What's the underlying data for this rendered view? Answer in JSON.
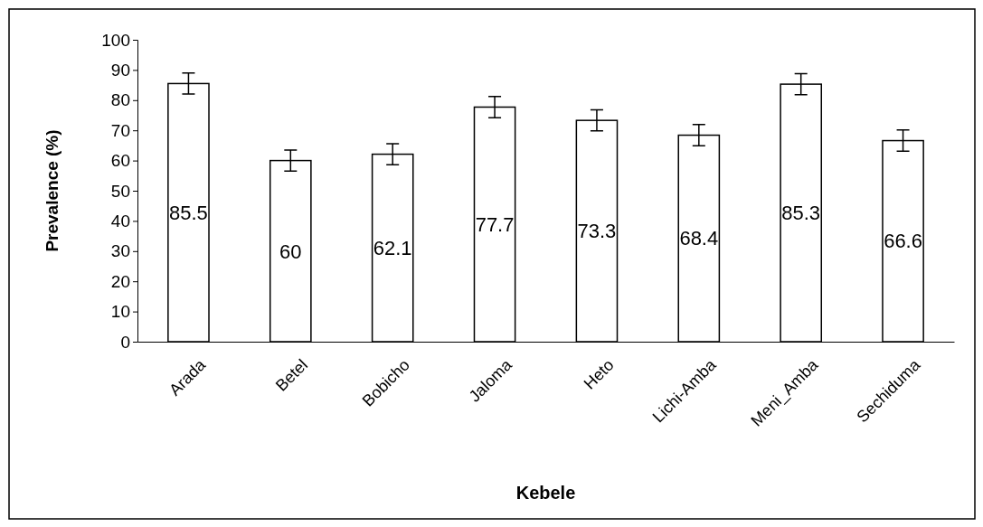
{
  "chart_data": {
    "type": "bar",
    "xlabel": "Kebele",
    "ylabel": "Prevalence (%)",
    "categories": [
      "Arada",
      "Betel",
      "Bobicho",
      "Jaloma",
      "Heto",
      "Lichi-Amba",
      "Meni_Amba",
      "Sechiduma"
    ],
    "values": [
      85.5,
      60,
      62.1,
      77.7,
      73.3,
      68.4,
      85.3,
      66.6
    ],
    "errors": [
      3.5,
      3.5,
      3.5,
      3.5,
      3.5,
      3.5,
      3.5,
      3.5
    ],
    "color": "#ffffff",
    "data_labels": true,
    "ylim": [
      0,
      100
    ],
    "yticks": [
      0,
      10,
      20,
      30,
      40,
      50,
      60,
      70,
      80,
      90,
      100
    ],
    "grid": false
  }
}
